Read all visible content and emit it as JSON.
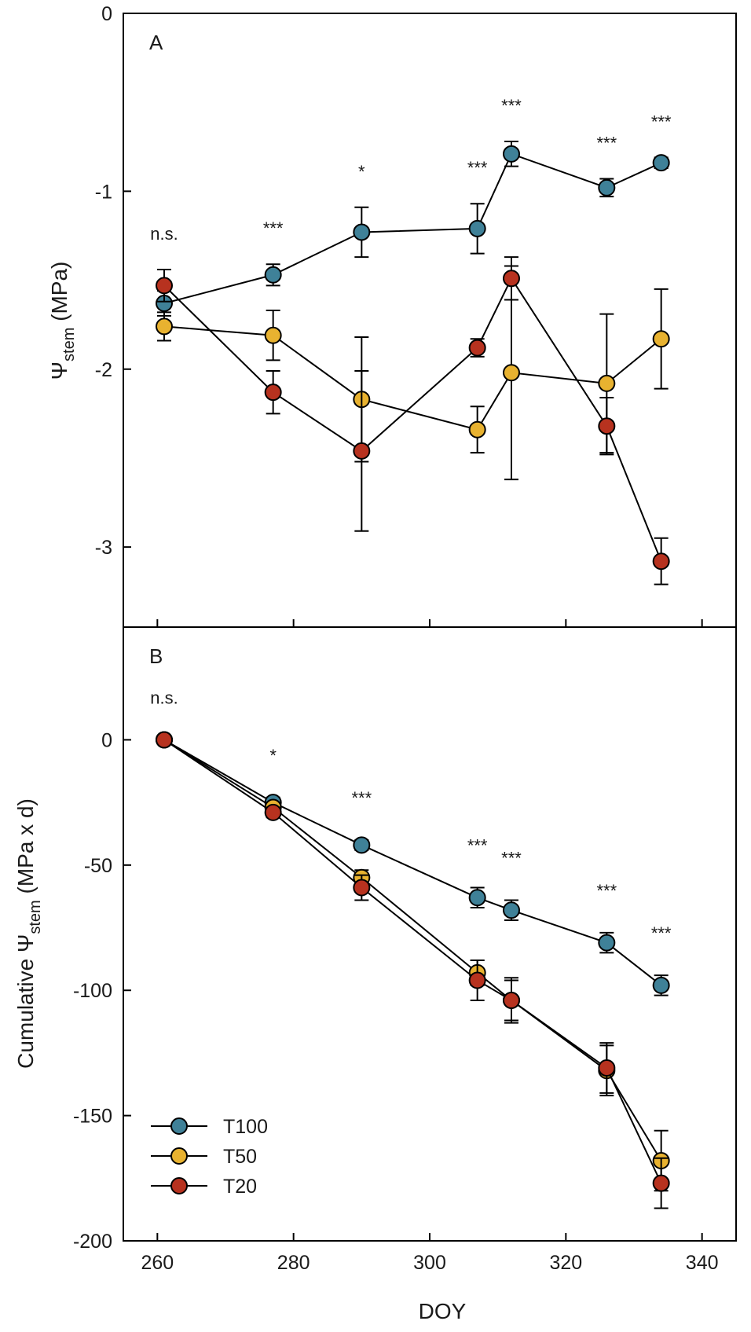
{
  "chart_data": [
    {
      "type": "line",
      "panel": "A",
      "title": "",
      "ylabel_main": "Ψ",
      "ylabel_sub": "stem",
      "ylabel_unit": " (MPa)",
      "xlabel": "",
      "xlim": [
        255,
        345
      ],
      "ylim": [
        -3.45,
        0
      ],
      "yticks": [
        0,
        -1,
        -2,
        -3
      ],
      "ytick_labels": [
        "0",
        "-1",
        "-2",
        "-3"
      ],
      "x": [
        261,
        277,
        290,
        307,
        312,
        326,
        334
      ],
      "series": [
        {
          "name": "T100",
          "color": "#3f8198",
          "values": [
            -1.63,
            -1.47,
            -1.23,
            -1.21,
            -0.79,
            -0.98,
            -0.84
          ],
          "errors": [
            0.07,
            0.06,
            0.14,
            0.14,
            0.07,
            0.05,
            0.03
          ]
        },
        {
          "name": "T50",
          "color": "#e8b230",
          "values": [
            -1.76,
            -1.81,
            -2.17,
            -2.34,
            -2.02,
            -2.08,
            -1.83
          ],
          "errors": [
            0.08,
            0.14,
            0.35,
            0.13,
            0.6,
            0.39,
            0.28
          ]
        },
        {
          "name": "T20",
          "color": "#b7321f",
          "values": [
            -1.53,
            -2.13,
            -2.46,
            -1.88,
            -1.49,
            -2.32,
            -3.08
          ],
          "errors": [
            0.09,
            0.12,
            0.45,
            0.05,
            0.12,
            0.16,
            0.13
          ]
        }
      ],
      "significance": [
        "n.s.",
        "***",
        "*",
        "***",
        "***",
        "***",
        "***"
      ]
    },
    {
      "type": "line",
      "panel": "B",
      "title": "",
      "ylabel_main": "Cumulative Ψ",
      "ylabel_sub": "stem",
      "ylabel_unit": " (MPa x d)",
      "xlabel": "DOY",
      "xlim": [
        255,
        345
      ],
      "ylim": [
        -200,
        45
      ],
      "xticks": [
        260,
        280,
        300,
        320,
        340
      ],
      "xtick_labels": [
        "260",
        "280",
        "300",
        "320",
        "340"
      ],
      "yticks": [
        0,
        -50,
        -100,
        -150,
        -200
      ],
      "ytick_labels": [
        "0",
        "-50",
        "-100",
        "-150",
        "-200"
      ],
      "x": [
        261,
        277,
        290,
        307,
        312,
        326,
        334
      ],
      "series": [
        {
          "name": "T100",
          "color": "#3f8198",
          "values": [
            0,
            -25,
            -42,
            -63,
            -68,
            -81,
            -98
          ],
          "errors": [
            0,
            2,
            2,
            4,
            4,
            4,
            4
          ]
        },
        {
          "name": "T50",
          "color": "#e8b230",
          "values": [
            0,
            -27,
            -55,
            -93,
            -104,
            -132,
            -168
          ],
          "errors": [
            0,
            2,
            3,
            5,
            8,
            10,
            12
          ]
        },
        {
          "name": "T20",
          "color": "#b7321f",
          "values": [
            0,
            -29,
            -59,
            -96,
            -104,
            -131,
            -177
          ],
          "errors": [
            0,
            2,
            5,
            8,
            9,
            10,
            10
          ]
        }
      ],
      "significance": [
        "n.s.",
        "*",
        "***",
        "***",
        "***",
        "***",
        "***"
      ],
      "legend": [
        "T100",
        "T50",
        "T20"
      ],
      "legend_position": "bottom-left"
    }
  ]
}
